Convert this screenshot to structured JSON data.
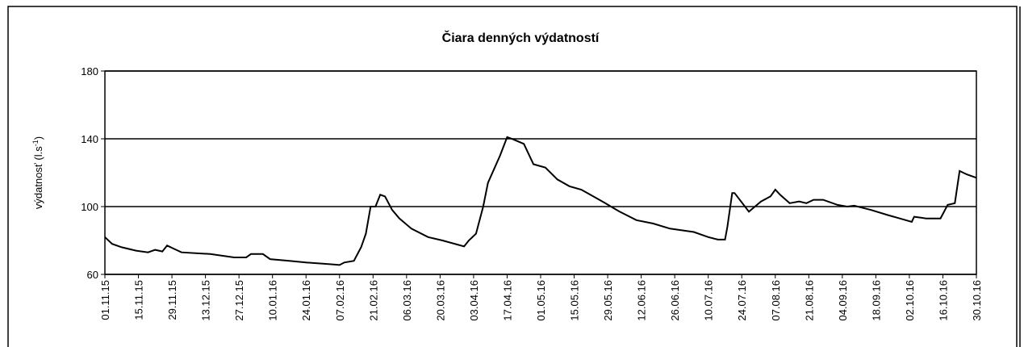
{
  "chart_data": {
    "type": "line",
    "title": "Čiara denných výdatností",
    "ylabel": [
      "výdatnosť (l.s",
      "-1",
      ")"
    ],
    "x": [
      "01.11.15",
      "04.11.15",
      "08.11.15",
      "14.11.15",
      "19.11.15",
      "22.11.15",
      "25.11.15",
      "27.11.15",
      "30.11.15",
      "03.12.15",
      "15.12.15",
      "25.12.15",
      "30.12.15",
      "01.01.16",
      "06.01.16",
      "09.01.16",
      "17.01.16",
      "24.01.16",
      "03.02.16",
      "07.02.16",
      "09.02.16",
      "13.02.16",
      "16.02.16",
      "18.02.16",
      "20.02.16",
      "22.02.16",
      "24.02.16",
      "26.02.16",
      "29.02.16",
      "03.03.16",
      "08.03.16",
      "15.03.16",
      "21.03.16",
      "30.03.16",
      "01.04.16",
      "04.04.16",
      "07.04.16",
      "09.04.16",
      "14.04.16",
      "17.04.16",
      "19.04.16",
      "24.04.16",
      "28.04.16",
      "03.05.16",
      "08.05.16",
      "13.05.16",
      "18.05.16",
      "23.05.16",
      "28.05.16",
      "03.06.16",
      "10.06.16",
      "17.06.16",
      "24.06.16",
      "04.07.16",
      "10.07.16",
      "14.07.16",
      "17.07.16",
      "18.07.16",
      "20.07.16",
      "21.07.16",
      "27.07.16",
      "01.08.16",
      "05.08.16",
      "07.08.16",
      "09.08.16",
      "13.08.16",
      "17.08.16",
      "20.08.16",
      "23.08.16",
      "27.08.16",
      "02.09.16",
      "06.09.16",
      "09.09.16",
      "16.09.16",
      "23.09.16",
      "28.09.16",
      "03.10.16",
      "04.10.16",
      "09.10.16",
      "15.10.16",
      "18.10.16",
      "21.10.16",
      "23.10.16",
      "26.10.16",
      "30.10.16"
    ],
    "series": [
      {
        "color": "#000000",
        "values": [
          82,
          78,
          76,
          74,
          73,
          74.5,
          73.5,
          77,
          75,
          73,
          72,
          70,
          70,
          72,
          72,
          69,
          68,
          67,
          66,
          65.5,
          67,
          68,
          76,
          84,
          100,
          100,
          107,
          106,
          98,
          93,
          87,
          82,
          80,
          76.5,
          80,
          84,
          100,
          114,
          130,
          141,
          140,
          137,
          125,
          123,
          116,
          112,
          110,
          106,
          102,
          97,
          92,
          90,
          87,
          85,
          82,
          80.5,
          80.5,
          88,
          108,
          108,
          97,
          103,
          106,
          110,
          107,
          102,
          103,
          102,
          104,
          104,
          101,
          100,
          100.5,
          98,
          95,
          93,
          91,
          94,
          93,
          93,
          101,
          102,
          121,
          119,
          117
        ]
      }
    ],
    "xlim": [
      "01.11.15",
      "30.10.16"
    ],
    "xticks": [
      "01.11.15",
      "15.11.15",
      "29.11.15",
      "13.12.15",
      "27.12.15",
      "10.01.16",
      "24.01.16",
      "07.02.16",
      "21.02.16",
      "06.03.16",
      "20.03.16",
      "03.04.16",
      "17.04.16",
      "01.05.16",
      "15.05.16",
      "29.05.16",
      "12.06.16",
      "26.06.16",
      "10.07.16",
      "24.07.16",
      "07.08.16",
      "21.08.16",
      "04.09.16",
      "18.09.16",
      "02.10.16",
      "16.10.16",
      "30.10.16"
    ],
    "ylim": [
      60,
      180
    ],
    "yticks": [
      60,
      100,
      140,
      180
    ],
    "grid": true
  }
}
